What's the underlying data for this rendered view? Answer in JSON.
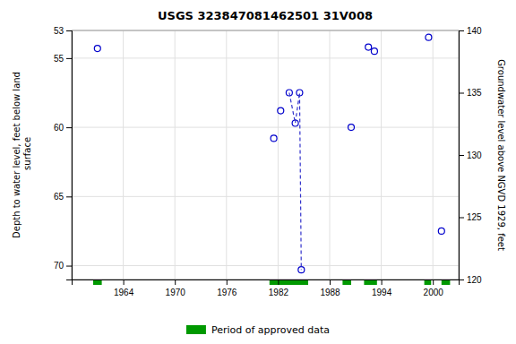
{
  "chart_data": {
    "type": "scatter",
    "title": "USGS 323847081462501 31V008",
    "ylabel": "Depth to water level, feet below land\n surface",
    "y2label": "Groundwater level above NGVD 1929, feet",
    "xlim": [
      1958,
      2003
    ],
    "xticks": [
      1964,
      1970,
      1976,
      1982,
      1988,
      1994,
      2000
    ],
    "ylim": [
      71,
      53
    ],
    "yticks": [
      53,
      55,
      60,
      65,
      70
    ],
    "y2lim": [
      120,
      140
    ],
    "y2ticks": [
      120,
      125,
      130,
      135,
      140
    ],
    "grid": true,
    "legend": "bottom",
    "series": [
      {
        "type": "scatter",
        "color": "#0000cc",
        "marker": "circle-open",
        "x": [
          1961.0,
          1981.5,
          1982.3,
          1983.3,
          1984.0,
          1984.5,
          1984.7,
          1990.5,
          1992.5,
          1993.2,
          1999.5,
          2001.0
        ],
        "values": [
          54.3,
          60.8,
          58.8,
          57.5,
          59.7,
          57.5,
          70.3,
          60.0,
          54.2,
          54.5,
          53.5,
          67.5
        ]
      },
      {
        "type": "line",
        "color": "#3333cc",
        "line_style": "dashed",
        "x": [
          1983.3,
          1984.0,
          1984.5,
          1984.7
        ],
        "values": [
          57.5,
          59.7,
          57.5,
          70.3
        ]
      },
      {
        "type": "span",
        "name": "Period of approved data",
        "color": "#009900",
        "x_start": [
          1960.5,
          1981.0,
          1989.5,
          1992.0,
          1999.0,
          2001.0
        ],
        "x_end": [
          1961.5,
          1985.5,
          1990.5,
          1993.5,
          1999.8,
          2002.0
        ]
      }
    ]
  }
}
